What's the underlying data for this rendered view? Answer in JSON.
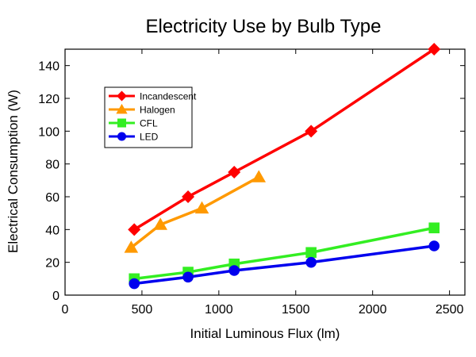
{
  "chart_data": {
    "type": "line",
    "title": "Electricity Use by Bulb Type",
    "xlabel": "Initial Luminous Flux (lm)",
    "ylabel": "Electrical Consumption (W)",
    "xlim": [
      0,
      2600
    ],
    "ylim": [
      0,
      150
    ],
    "x_ticks": [
      "0",
      "500",
      "1000",
      "1500",
      "2000",
      "2500"
    ],
    "y_ticks": [
      "0",
      "20",
      "40",
      "60",
      "80",
      "100",
      "120",
      "140"
    ],
    "x_tick_values": [
      0,
      500,
      1000,
      1500,
      2000,
      2500
    ],
    "y_tick_values": [
      0,
      20,
      40,
      60,
      80,
      100,
      120,
      140
    ],
    "grid": false,
    "legend_position": "top-left",
    "series": [
      {
        "name": "Incandescent",
        "color": "#ff0000",
        "marker": "diamond",
        "x": [
          450,
          800,
          1100,
          1600,
          2400
        ],
        "y": [
          40,
          60,
          75,
          100,
          150
        ]
      },
      {
        "name": "Halogen",
        "color": "#ff9900",
        "marker": "triangle",
        "x": [
          430,
          620,
          890,
          1260
        ],
        "y": [
          29,
          43,
          53,
          72
        ]
      },
      {
        "name": "CFL",
        "color": "#33ee22",
        "marker": "square",
        "x": [
          450,
          800,
          1100,
          1600,
          2400
        ],
        "y": [
          10,
          14,
          19,
          26,
          41
        ]
      },
      {
        "name": "LED",
        "color": "#0000ee",
        "marker": "circle",
        "x": [
          450,
          800,
          1100,
          1600,
          2400
        ],
        "y": [
          7,
          11,
          15,
          20,
          30
        ]
      }
    ]
  }
}
